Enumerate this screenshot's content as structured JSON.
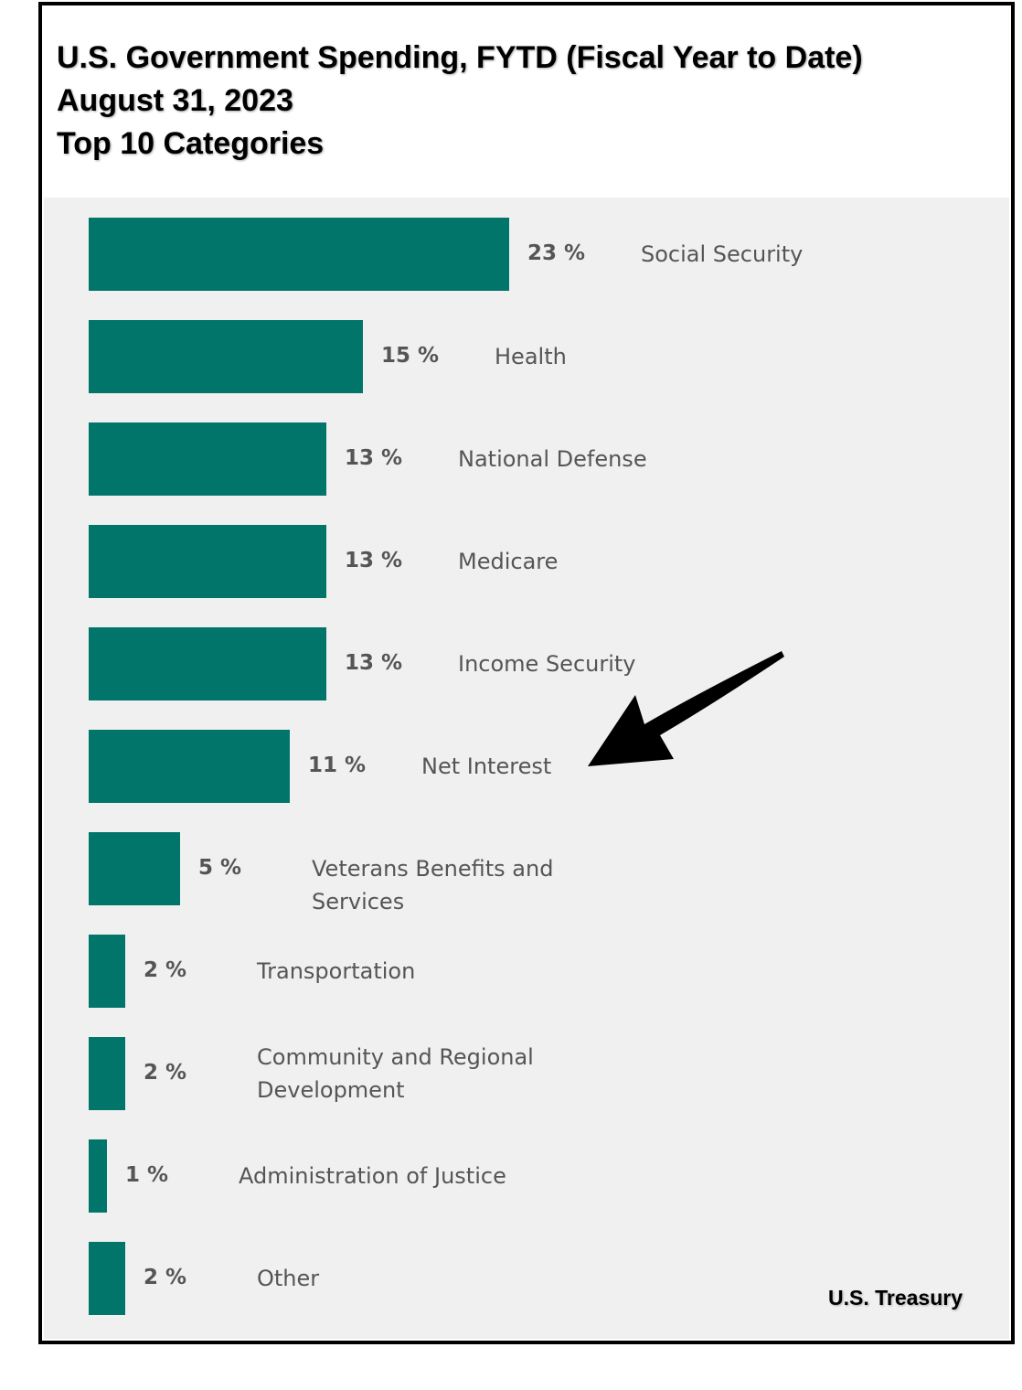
{
  "title_lines": [
    "U.S. Government Spending, FYTD (Fiscal Year to Date)",
    "August 31, 2023",
    "Top 10 Categories"
  ],
  "source": "U.S. Treasury",
  "colors": {
    "bar": "#02756a",
    "plot_bg": "#f0f0f0",
    "label": "#555555",
    "arrow": "#000000"
  },
  "chart_data": {
    "type": "bar",
    "orientation": "horizontal",
    "title": "U.S. Government Spending, FYTD (Fiscal Year to Date) August 31, 2023 Top 10 Categories",
    "categories": [
      "Social Security",
      "Health",
      "National Defense",
      "Medicare",
      "Income Security",
      "Net Interest",
      "Veterans Benefits and Services",
      "Transportation",
      "Community and Regional Development",
      "Administration of Justice",
      "Other"
    ],
    "values": [
      23,
      15,
      13,
      13,
      13,
      11,
      5,
      2,
      2,
      1,
      2
    ],
    "value_labels": [
      "23 %",
      "15 %",
      "13 %",
      "13 %",
      "13 %",
      "11 %",
      "5 %",
      "2 %",
      "2 %",
      "1 %",
      "2 %"
    ],
    "unit": "%",
    "annotations": [
      {
        "type": "arrow",
        "points_to": "Net Interest"
      }
    ],
    "grid": false,
    "legend": "none"
  }
}
